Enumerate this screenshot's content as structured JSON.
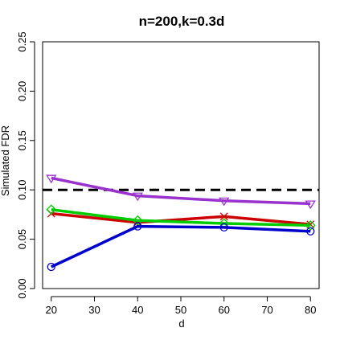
{
  "chart_data": {
    "type": "line",
    "title": "n=200,k=0.3d",
    "xlabel": "d",
    "ylabel": "Simulated FDR",
    "xlim": [
      18,
      82
    ],
    "ylim": [
      0.0,
      0.25
    ],
    "x_ticks": [
      20,
      30,
      40,
      50,
      60,
      70,
      80
    ],
    "y_ticks": [
      0.0,
      0.05,
      0.1,
      0.15,
      0.2,
      0.25
    ],
    "x_tick_labels": [
      "20",
      "30",
      "40",
      "50",
      "60",
      "70",
      "80"
    ],
    "y_tick_labels": [
      "0.00",
      "0.05",
      "0.10",
      "0.15",
      "0.20",
      "0.25"
    ],
    "x": [
      20,
      40,
      60,
      80
    ],
    "reference_line": {
      "y": 0.1,
      "style": "dashed",
      "color": "#000000"
    },
    "grid": false,
    "series": [
      {
        "color": "#9a32cd",
        "marker": "triangle-down",
        "values": [
          0.112,
          0.094,
          0.089,
          0.086
        ]
      },
      {
        "color": "#cd0000",
        "marker": "x",
        "values": [
          0.076,
          0.067,
          0.073,
          0.065
        ]
      },
      {
        "color": "#00cd00",
        "marker": "diamond",
        "values": [
          0.08,
          0.069,
          0.066,
          0.064
        ]
      },
      {
        "color": "#0000cd",
        "marker": "circle",
        "values": [
          0.022,
          0.063,
          0.062,
          0.058
        ]
      }
    ]
  }
}
